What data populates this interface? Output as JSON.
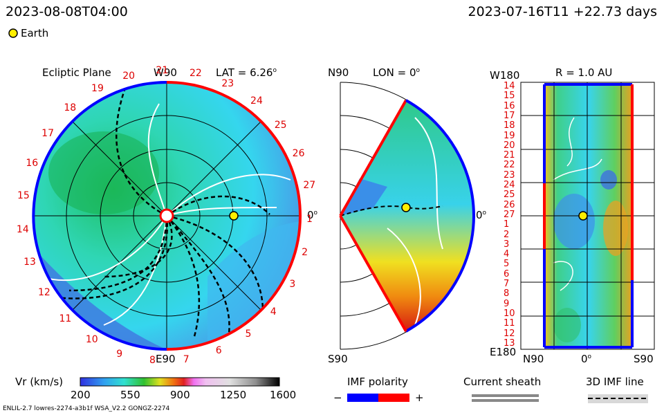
{
  "header": {
    "left_timestamp": "2023-08-08T04:00",
    "right_timestamp": "2023-07-16T11 +22.73 days",
    "legend_marker_label": "Earth"
  },
  "panels": {
    "ecliptic": {
      "title": "Ecliptic Plane",
      "top_label": "W90",
      "lat_label": "LAT = 6.26",
      "right_label": "0",
      "bottom_label": "E90",
      "rim_numbers": [
        "1",
        "2",
        "3",
        "4",
        "5",
        "6",
        "7",
        "8",
        "9",
        "10",
        "11",
        "12",
        "13",
        "14",
        "15",
        "16",
        "17",
        "18",
        "19",
        "20",
        "21",
        "22",
        "23",
        "24",
        "25",
        "26",
        "27"
      ]
    },
    "meridional": {
      "top_left_label": "N90",
      "lon_label": "LON = 0",
      "right_label": "0",
      "bottom_label": "S90"
    },
    "synoptic": {
      "top_left_label": "W180",
      "r_label": "R = 1.0 AU",
      "bottom_left_label": "E180",
      "x_left_label": "N90",
      "x_mid_label": "0",
      "x_right_label": "S90",
      "row_labels": [
        "14",
        "15",
        "16",
        "17",
        "18",
        "19",
        "20",
        "21",
        "22",
        "23",
        "24",
        "25",
        "26",
        "27",
        "1",
        "2",
        "3",
        "4",
        "5",
        "6",
        "7",
        "8",
        "9",
        "10",
        "11",
        "12",
        "13"
      ]
    }
  },
  "colorbar": {
    "label": "Vr (km/s)",
    "ticks": [
      "200",
      "550",
      "900",
      "1250",
      "1600"
    ]
  },
  "legend": {
    "imf_title": "IMF polarity",
    "imf_minus": "−",
    "imf_plus": "+",
    "sheath_title": "Current sheath",
    "imf3d_title": "3D IMF line"
  },
  "footer": {
    "model_text": "ENLIL-2.7 lowres-2274-a3b1f WSA_V2.2 GONGZ-2274"
  },
  "colors": {
    "polarity_negative": "#0000ff",
    "polarity_positive": "#ff0000",
    "rim_numbers": "#dd0000"
  }
}
